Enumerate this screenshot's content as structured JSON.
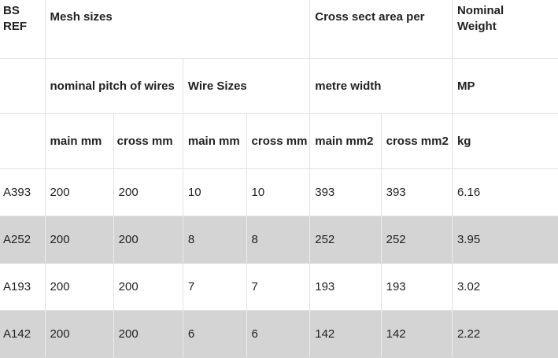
{
  "header": {
    "row1": {
      "bs_ref": "BS\nREF",
      "mesh_sizes": "Mesh sizes",
      "cross_sect": "Cross sect area per",
      "nominal_weight": "Nominal\nWeight"
    },
    "row2": {
      "nominal_pitch": "nominal pitch of wires",
      "wire_sizes": "Wire Sizes",
      "metre_width": "metre width",
      "mp": "MP"
    },
    "row3": {
      "pitch_main": "main mm",
      "pitch_cross": "cross mm",
      "wire_main": "main mm",
      "wire_cross": "cross mm",
      "area_main": "main mm2",
      "area_cross": "cross mm2",
      "weight_unit": "kg"
    }
  },
  "rows": [
    {
      "ref": "A393",
      "pitch_main": "200",
      "pitch_cross": "200",
      "wire_main": "10",
      "wire_cross": "10",
      "area_main": "393",
      "area_cross": "393",
      "weight": "6.16"
    },
    {
      "ref": "A252",
      "pitch_main": "200",
      "pitch_cross": "200",
      "wire_main": "8",
      "wire_cross": "8",
      "area_main": "252",
      "area_cross": "252",
      "weight": "3.95"
    },
    {
      "ref": "A193",
      "pitch_main": "200",
      "pitch_cross": "200",
      "wire_main": "7",
      "wire_cross": "7",
      "area_main": "193",
      "area_cross": "193",
      "weight": "3.02"
    },
    {
      "ref": "A142",
      "pitch_main": "200",
      "pitch_cross": "200",
      "wire_main": "6",
      "wire_cross": "6",
      "area_main": "142",
      "area_cross": "142",
      "weight": "2.22"
    }
  ],
  "shading": {
    "shaded_fill": "#d4d4d4",
    "border": "#e2e2e2"
  }
}
